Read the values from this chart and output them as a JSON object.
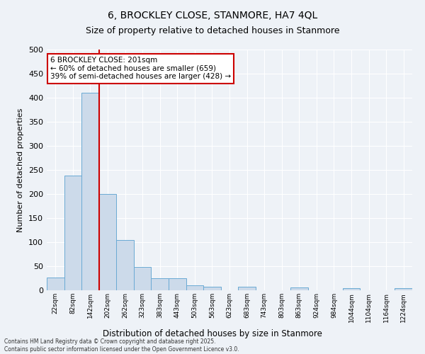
{
  "title_line1": "6, BROCKLEY CLOSE, STANMORE, HA7 4QL",
  "title_line2": "Size of property relative to detached houses in Stanmore",
  "xlabel": "Distribution of detached houses by size in Stanmore",
  "ylabel": "Number of detached properties",
  "bar_color": "#ccdaea",
  "bar_edge_color": "#6aaad4",
  "bin_labels": [
    "22sqm",
    "82sqm",
    "142sqm",
    "202sqm",
    "262sqm",
    "323sqm",
    "383sqm",
    "443sqm",
    "503sqm",
    "563sqm",
    "623sqm",
    "683sqm",
    "743sqm",
    "803sqm",
    "863sqm",
    "924sqm",
    "984sqm",
    "1044sqm",
    "1104sqm",
    "1164sqm",
    "1224sqm"
  ],
  "bar_values": [
    27,
    238,
    410,
    200,
    105,
    49,
    25,
    25,
    11,
    8,
    0,
    7,
    0,
    0,
    6,
    0,
    0,
    4,
    0,
    0,
    4
  ],
  "ylim": [
    0,
    500
  ],
  "yticks": [
    0,
    50,
    100,
    150,
    200,
    250,
    300,
    350,
    400,
    450,
    500
  ],
  "property_line_index": 3,
  "annotation_text": "6 BROCKLEY CLOSE: 201sqm\n← 60% of detached houses are smaller (659)\n39% of semi-detached houses are larger (428) →",
  "annotation_box_color": "#ffffff",
  "annotation_box_edge_color": "#cc0000",
  "red_line_color": "#cc0000",
  "background_color": "#eef2f7",
  "grid_color": "#ffffff",
  "footer_line1": "Contains HM Land Registry data © Crown copyright and database right 2025.",
  "footer_line2": "Contains public sector information licensed under the Open Government Licence v3.0."
}
